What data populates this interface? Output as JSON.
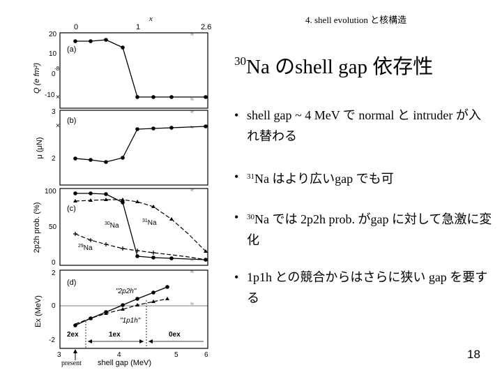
{
  "header": {
    "label": "4. shell evolution と核構造"
  },
  "title": {
    "mass_number": "30",
    "text": "Na のshell gap 依存性"
  },
  "bullets": [
    {
      "marker": "•",
      "sup": "",
      "text": "shell gap ~ 4 MeV で normal と intruder が入れ替わる"
    },
    {
      "marker": "•",
      "sup": "31",
      "text": "Na はより広いgap でも可"
    },
    {
      "marker": "•",
      "sup": "30",
      "text": "Na では 2p2h prob. がgap に対して急激に変化"
    },
    {
      "marker": "•",
      "sup": "",
      "text": "1p1h との競合からはさらに狭い gap を要する"
    }
  ],
  "page_number": "18",
  "figure": {
    "top_axis": {
      "label": "x",
      "ticks": [
        "0",
        "1",
        "2.6"
      ]
    },
    "bottom_axis": {
      "label": "shell gap (MeV)",
      "ticks": [
        "3",
        "4",
        "5",
        "6"
      ]
    },
    "present_label": "present",
    "regions": [
      "2ex",
      "1ex",
      "0ex"
    ],
    "panels": [
      {
        "tag": "(a)",
        "ylabel": "Q (e fm²)",
        "ticks": [
          "20",
          "10",
          "0",
          "-10"
        ],
        "extra": "-8"
      },
      {
        "tag": "(b)",
        "ylabel": "μ (μN)",
        "ticks": [
          "3",
          "2"
        ]
      },
      {
        "tag": "(c)",
        "ylabel": "2p2h prob. (%)",
        "ticks": [
          "100",
          "50",
          "0"
        ],
        "series_labels": [
          {
            "mass": "30",
            "text": "Na"
          },
          {
            "mass": "31",
            "text": "Na"
          },
          {
            "mass": "29",
            "text": "Na"
          }
        ]
      },
      {
        "tag": "(d)",
        "ylabel": "Ex (MeV)",
        "ticks": [
          "2",
          "0",
          "-2"
        ],
        "series_labels": [
          "\"2p2h\"",
          "\"1p1h\""
        ]
      }
    ]
  }
}
